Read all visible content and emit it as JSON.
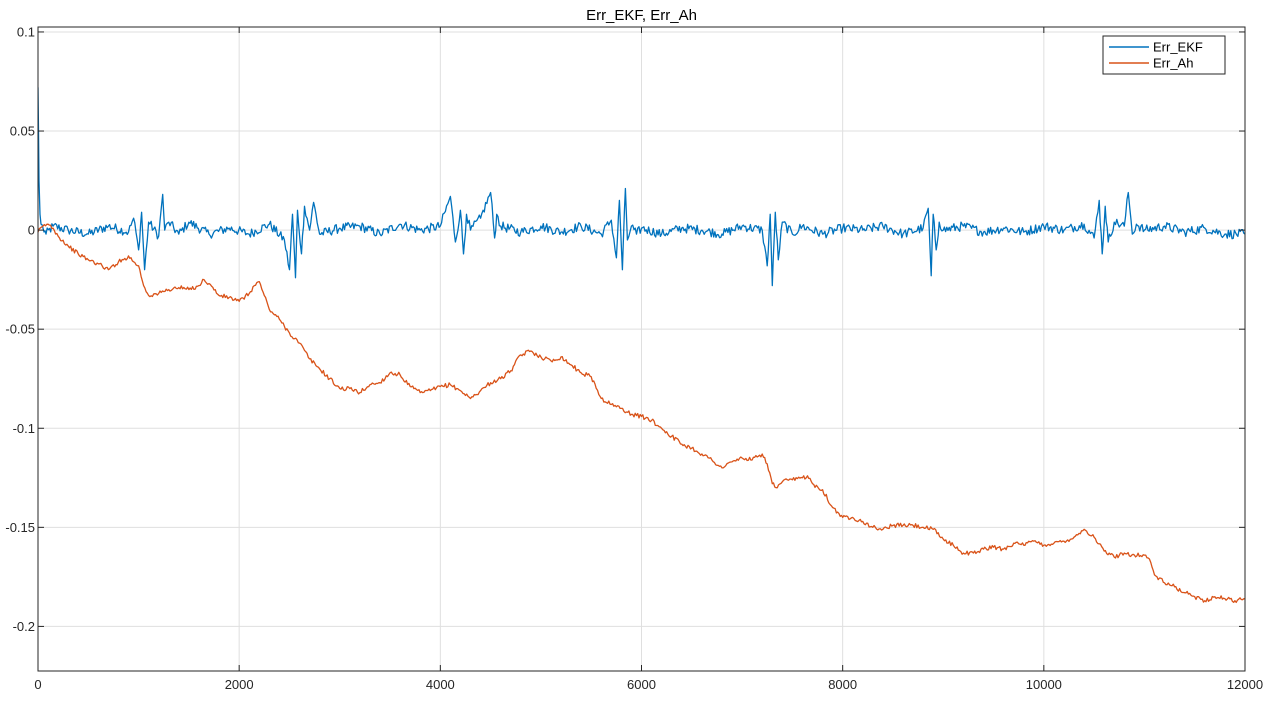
{
  "chart_data": {
    "type": "line",
    "title": "Err_EKF, Err_Ah",
    "xlabel": "",
    "ylabel": "",
    "xlim": [
      0,
      12000
    ],
    "ylim": [
      -0.2225,
      0.1025
    ],
    "xticks": [
      0,
      2000,
      4000,
      6000,
      8000,
      10000,
      12000
    ],
    "xtick_labels": [
      "0",
      "2000",
      "4000",
      "6000",
      "8000",
      "10000",
      "12000"
    ],
    "yticks": [
      0.1,
      0.05,
      0,
      -0.05,
      -0.1,
      -0.15,
      -0.2
    ],
    "ytick_labels": [
      "0.1",
      "0.05",
      "0",
      "-0.05",
      "-0.1",
      "-0.15",
      "-0.2"
    ],
    "grid": true,
    "legend_position": "top-right",
    "series": [
      {
        "name": "Err_EKF",
        "color": "#0072BD",
        "x": [
          0,
          5,
          10,
          20,
          30,
          50,
          80,
          150,
          300,
          500,
          700,
          900,
          950,
          1000,
          1030,
          1060,
          1100,
          1200,
          1240,
          1260,
          1300,
          1400,
          1500,
          1700,
          1900,
          2100,
          2300,
          2450,
          2500,
          2530,
          2560,
          2580,
          2620,
          2650,
          2700,
          2740,
          2800,
          3000,
          3200,
          3400,
          3600,
          3800,
          4000,
          4100,
          4150,
          4200,
          4230,
          4260,
          4300,
          4400,
          4500,
          4540,
          4560,
          4600,
          4800,
          5000,
          5200,
          5400,
          5600,
          5700,
          5750,
          5780,
          5810,
          5840,
          5860,
          5900,
          5950,
          6000,
          6200,
          6400,
          6600,
          6800,
          7000,
          7200,
          7250,
          7280,
          7300,
          7330,
          7360,
          7400,
          7500,
          7600,
          7800,
          8000,
          8200,
          8400,
          8600,
          8800,
          8850,
          8880,
          8900,
          8930,
          8960,
          9000,
          9200,
          9400,
          9600,
          9800,
          10000,
          10200,
          10400,
          10500,
          10550,
          10580,
          10610,
          10640,
          10700,
          10800,
          10840,
          10880,
          10920,
          11000,
          11200,
          11400,
          11600,
          11800,
          12000
        ],
        "y": [
          0.072,
          0.05,
          0.025,
          0.008,
          0.003,
          0.001,
          -0.002,
          0.002,
          0.0,
          -0.002,
          0.002,
          -0.001,
          0.006,
          -0.01,
          0.009,
          -0.02,
          0.004,
          -0.003,
          0.018,
          0.0,
          0.004,
          -0.002,
          0.004,
          -0.002,
          0.001,
          -0.002,
          0.003,
          -0.005,
          -0.02,
          0.008,
          -0.024,
          0.01,
          -0.012,
          0.012,
          0.0,
          0.014,
          -0.002,
          0.001,
          0.002,
          -0.002,
          0.003,
          0.0,
          0.002,
          0.017,
          -0.006,
          0.01,
          -0.012,
          0.008,
          0.0,
          0.006,
          0.019,
          -0.004,
          0.008,
          0.002,
          -0.001,
          0.002,
          -0.001,
          0.002,
          -0.002,
          0.005,
          -0.014,
          0.015,
          -0.02,
          0.021,
          -0.005,
          0.002,
          -0.002,
          0.001,
          -0.002,
          0.001,
          0.0,
          -0.002,
          0.002,
          0.0,
          -0.018,
          0.008,
          -0.028,
          0.009,
          -0.015,
          0.004,
          -0.002,
          0.002,
          -0.002,
          0.001,
          0.0,
          0.002,
          -0.002,
          0.001,
          0.011,
          -0.023,
          0.008,
          -0.01,
          0.004,
          0.0,
          0.002,
          -0.001,
          0.001,
          -0.001,
          0.002,
          0.0,
          0.003,
          -0.004,
          0.015,
          -0.012,
          0.012,
          -0.006,
          0.004,
          0.002,
          0.019,
          -0.002,
          0.003,
          0.0,
          0.002,
          -0.001,
          0.001,
          -0.002,
          -0.002
        ]
      },
      {
        "name": "Err_Ah",
        "color": "#D95319",
        "x": [
          0,
          50,
          100,
          150,
          200,
          300,
          400,
          500,
          600,
          700,
          800,
          850,
          900,
          950,
          1000,
          1050,
          1100,
          1200,
          1300,
          1400,
          1500,
          1600,
          1650,
          1700,
          1800,
          1900,
          2000,
          2100,
          2150,
          2200,
          2250,
          2300,
          2400,
          2500,
          2600,
          2700,
          2800,
          2900,
          3000,
          3100,
          3200,
          3300,
          3400,
          3500,
          3600,
          3700,
          3800,
          3900,
          4000,
          4100,
          4200,
          4300,
          4400,
          4500,
          4600,
          4700,
          4800,
          4900,
          5000,
          5100,
          5200,
          5300,
          5400,
          5500,
          5600,
          5700,
          5800,
          5900,
          6000,
          6100,
          6200,
          6300,
          6400,
          6500,
          6600,
          6700,
          6800,
          6900,
          7000,
          7100,
          7200,
          7250,
          7300,
          7350,
          7400,
          7500,
          7600,
          7650,
          7700,
          7800,
          7900,
          8000,
          8100,
          8200,
          8300,
          8400,
          8500,
          8600,
          8700,
          8800,
          8900,
          9000,
          9100,
          9200,
          9300,
          9400,
          9500,
          9600,
          9700,
          9800,
          9900,
          10000,
          10100,
          10200,
          10300,
          10400,
          10500,
          10600,
          10700,
          10800,
          10900,
          11000,
          11050,
          11100,
          11200,
          11300,
          11400,
          11500,
          11600,
          11700,
          11800,
          11900,
          12000
        ],
        "y": [
          -0.001,
          0.002,
          0.003,
          0.001,
          -0.003,
          -0.008,
          -0.012,
          -0.015,
          -0.017,
          -0.02,
          -0.016,
          -0.015,
          -0.013,
          -0.016,
          -0.018,
          -0.028,
          -0.033,
          -0.032,
          -0.03,
          -0.029,
          -0.03,
          -0.028,
          -0.025,
          -0.027,
          -0.033,
          -0.034,
          -0.036,
          -0.032,
          -0.028,
          -0.026,
          -0.033,
          -0.04,
          -0.045,
          -0.052,
          -0.057,
          -0.065,
          -0.07,
          -0.075,
          -0.08,
          -0.08,
          -0.082,
          -0.078,
          -0.077,
          -0.072,
          -0.073,
          -0.079,
          -0.082,
          -0.081,
          -0.079,
          -0.078,
          -0.081,
          -0.085,
          -0.081,
          -0.077,
          -0.075,
          -0.071,
          -0.063,
          -0.061,
          -0.064,
          -0.066,
          -0.064,
          -0.068,
          -0.072,
          -0.074,
          -0.085,
          -0.088,
          -0.09,
          -0.093,
          -0.094,
          -0.096,
          -0.1,
          -0.104,
          -0.108,
          -0.11,
          -0.113,
          -0.116,
          -0.12,
          -0.117,
          -0.115,
          -0.116,
          -0.113,
          -0.118,
          -0.128,
          -0.13,
          -0.127,
          -0.126,
          -0.125,
          -0.124,
          -0.128,
          -0.131,
          -0.14,
          -0.145,
          -0.145,
          -0.147,
          -0.15,
          -0.151,
          -0.149,
          -0.149,
          -0.149,
          -0.15,
          -0.151,
          -0.156,
          -0.159,
          -0.163,
          -0.163,
          -0.161,
          -0.16,
          -0.161,
          -0.158,
          -0.159,
          -0.157,
          -0.159,
          -0.158,
          -0.157,
          -0.155,
          -0.151,
          -0.155,
          -0.162,
          -0.165,
          -0.163,
          -0.164,
          -0.164,
          -0.166,
          -0.174,
          -0.178,
          -0.18,
          -0.183,
          -0.185,
          -0.187,
          -0.185,
          -0.186,
          -0.187,
          -0.186
        ]
      }
    ]
  }
}
